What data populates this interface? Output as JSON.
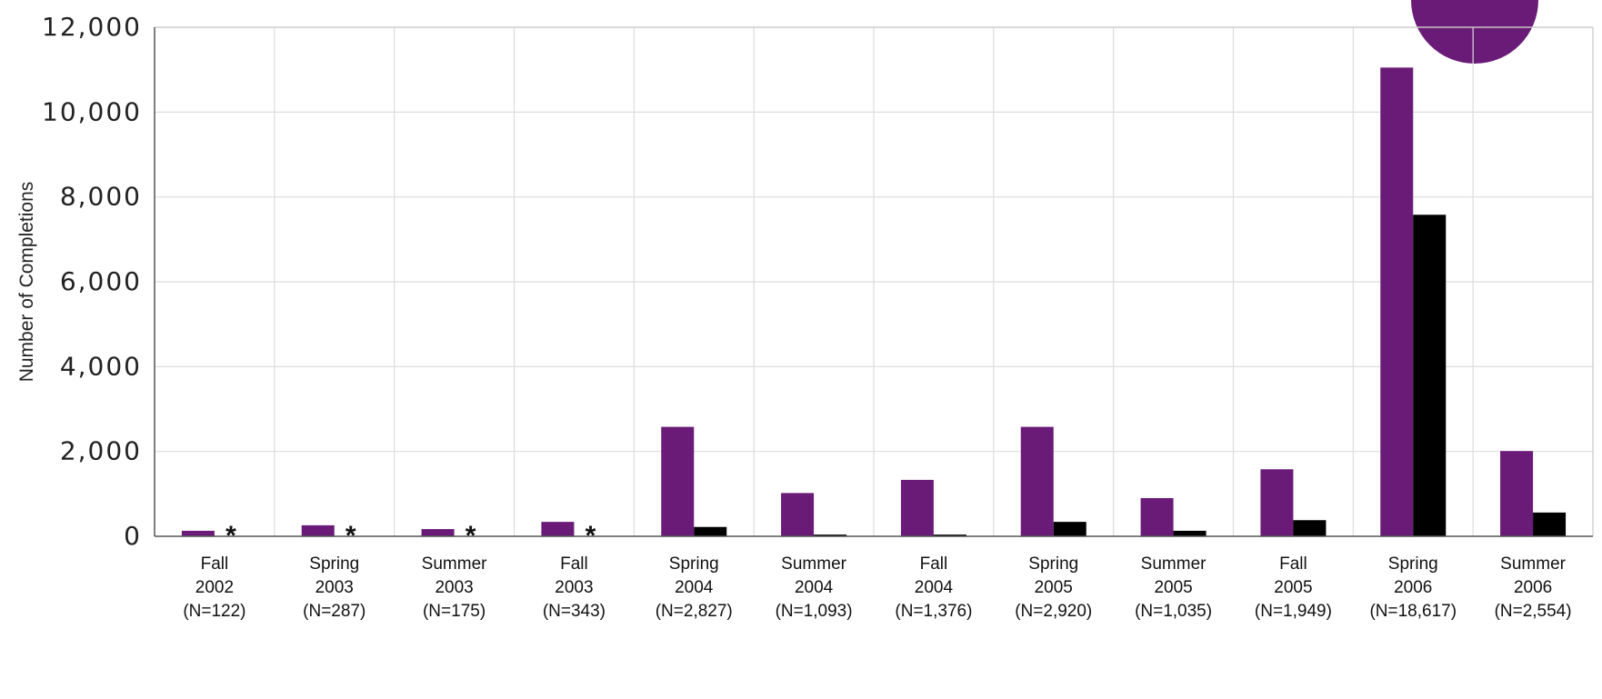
{
  "chart_data": {
    "type": "bar",
    "title": "",
    "xlabel": "",
    "ylabel": "Number of Completions",
    "ylim": [
      0,
      12000
    ],
    "yticks": [
      0,
      2000,
      4000,
      6000,
      8000,
      10000,
      12000
    ],
    "ytick_labels": [
      "0",
      "2,000",
      "4,000",
      "6,000",
      "8,000",
      "10,000",
      "12,000"
    ],
    "grid": true,
    "legend": "none",
    "categories": [
      [
        "Fall",
        "2002",
        "(N=122)"
      ],
      [
        "Spring",
        "2003",
        "(N=287)"
      ],
      [
        "Summer",
        "2003",
        "(N=175)"
      ],
      [
        "Fall",
        "2003",
        "(N=343)"
      ],
      [
        "Spring",
        "2004",
        "(N=2,827)"
      ],
      [
        "Summer",
        "2004",
        "(N=1,093)"
      ],
      [
        "Fall",
        "2004",
        "(N=1,376)"
      ],
      [
        "Spring",
        "2005",
        "(N=2,920)"
      ],
      [
        "Summer",
        "2005",
        "(N=1,035)"
      ],
      [
        "Fall",
        "2005",
        "(N=1,949)"
      ],
      [
        "Spring",
        "2006",
        "(N=18,617)"
      ],
      [
        "Summer",
        "2006",
        "(N=2,554)"
      ]
    ],
    "series": [
      {
        "color": "#6a1b78",
        "values": [
          130,
          260,
          170,
          340,
          2580,
          1020,
          1330,
          2580,
          900,
          1580,
          11050,
          2010
        ]
      },
      {
        "color": "#000000",
        "values": [
          null,
          null,
          null,
          null,
          220,
          40,
          40,
          340,
          130,
          380,
          7580,
          560
        ]
      }
    ],
    "annotations": [
      {
        "category_index": 0,
        "text": "*"
      },
      {
        "category_index": 1,
        "text": "*"
      },
      {
        "category_index": 2,
        "text": "*"
      },
      {
        "category_index": 3,
        "text": "*"
      }
    ]
  }
}
